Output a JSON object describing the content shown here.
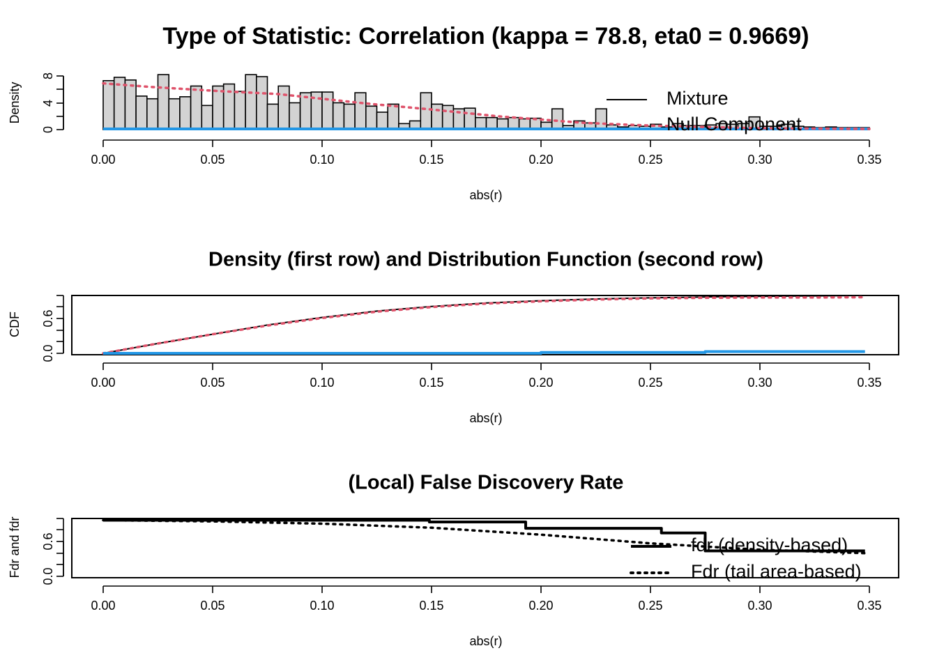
{
  "colors": {
    "mixture": "#000000",
    "null": "#2297E6",
    "density_fit": "#DF536B",
    "hist_fill": "#D3D3D3"
  },
  "chart_data": [
    {
      "type": "histogram",
      "title": "Type of Statistic: Correlation (kappa = 78.8, eta0 = 0.9669)",
      "xlabel": "abs(r)",
      "ylabel": "Density",
      "xlim": [
        0,
        0.35
      ],
      "ylim": [
        0,
        8
      ],
      "xticks": [
        "0.00",
        "0.05",
        "0.10",
        "0.15",
        "0.20",
        "0.25",
        "0.30",
        "0.35"
      ],
      "yticks": [
        "0",
        "4",
        "8"
      ],
      "bin_width": 0.005,
      "bin_heights": [
        7.3,
        7.8,
        7.4,
        5.0,
        4.6,
        8.2,
        4.6,
        4.9,
        6.5,
        3.6,
        6.5,
        6.8,
        5.7,
        8.2,
        7.9,
        3.8,
        6.5,
        4.0,
        5.5,
        5.6,
        5.6,
        4.0,
        3.8,
        5.5,
        3.5,
        2.6,
        3.8,
        0.9,
        1.3,
        5.5,
        3.8,
        3.6,
        3.1,
        3.2,
        1.8,
        1.8,
        1.6,
        1.8,
        1.6,
        1.7,
        1.1,
        3.1,
        0.6,
        1.3,
        1.0,
        3.1,
        0.7,
        0.4,
        0.6,
        0.5,
        0.8,
        0.4,
        0.9,
        0.6,
        0.6,
        0.7,
        0.9,
        0.8,
        0.9,
        1.9,
        0.5,
        0.5,
        0.8,
        0.5,
        0.4,
        0.3,
        0.4,
        0.3,
        0.3,
        0.3
      ],
      "series": [
        {
          "name": "Mixture",
          "style": "solid",
          "color": "#000000",
          "x": [
            0.0,
            0.25,
            0.35
          ],
          "y": [
            0.1,
            0.1,
            0.1
          ]
        },
        {
          "name": "Null Component",
          "style": "solid-thick",
          "color": "#2297E6",
          "x": [
            0.0,
            0.35
          ],
          "y": [
            0.1,
            0.1
          ]
        },
        {
          "name": "",
          "style": "dotted",
          "color": "#DF536B",
          "x": [
            0.0,
            0.02,
            0.05,
            0.08,
            0.1,
            0.12,
            0.15,
            0.18,
            0.2,
            0.22,
            0.25,
            0.28,
            0.3,
            0.35
          ],
          "y": [
            6.9,
            6.4,
            5.8,
            5.3,
            4.6,
            3.9,
            3.0,
            2.0,
            1.5,
            1.0,
            0.6,
            0.35,
            0.2,
            0.1
          ]
        }
      ],
      "legend": {
        "position": "top-right",
        "entries": [
          "Mixture",
          "Null Component"
        ]
      }
    },
    {
      "type": "line",
      "title": "Density (first row) and Distribution Function (second row)",
      "xlabel": "abs(r)",
      "ylabel": "CDF",
      "xlim": [
        0,
        0.35
      ],
      "ylim": [
        0,
        1
      ],
      "xticks": [
        "0.00",
        "0.05",
        "0.10",
        "0.15",
        "0.20",
        "0.25",
        "0.30",
        "0.35"
      ],
      "yticks": [
        "0.0",
        "0.6"
      ],
      "series": [
        {
          "name": "",
          "style": "solid",
          "color": "#000000",
          "x": [
            0.0,
            0.025,
            0.05,
            0.075,
            0.1,
            0.125,
            0.15,
            0.175,
            0.2,
            0.225,
            0.25,
            0.275,
            0.3,
            0.325,
            0.348
          ],
          "y": [
            0.0,
            0.17,
            0.33,
            0.49,
            0.62,
            0.73,
            0.81,
            0.87,
            0.91,
            0.94,
            0.96,
            0.975,
            0.985,
            0.993,
            1.0
          ]
        },
        {
          "name": "",
          "style": "dotted",
          "color": "#DF536B",
          "x": [
            0.0,
            0.025,
            0.05,
            0.075,
            0.1,
            0.125,
            0.15,
            0.175,
            0.2,
            0.225,
            0.25,
            0.275,
            0.3,
            0.325,
            0.348
          ],
          "y": [
            0.0,
            0.17,
            0.33,
            0.48,
            0.61,
            0.72,
            0.8,
            0.86,
            0.9,
            0.93,
            0.95,
            0.96,
            0.965,
            0.965,
            0.97
          ]
        },
        {
          "name": "",
          "style": "solid-thick",
          "color": "#2297E6",
          "x": [
            0.0,
            0.2,
            0.2,
            0.275,
            0.275,
            0.348
          ],
          "y": [
            0.0,
            0.0,
            0.015,
            0.015,
            0.03,
            0.03
          ]
        }
      ]
    },
    {
      "type": "line",
      "title": "(Local) False Discovery Rate",
      "xlabel": "abs(r)",
      "ylabel": "Fdr and fdr",
      "xlim": [
        0,
        0.35
      ],
      "ylim": [
        0,
        1
      ],
      "xticks": [
        "0.00",
        "0.05",
        "0.10",
        "0.15",
        "0.20",
        "0.25",
        "0.30",
        "0.35"
      ],
      "yticks": [
        "0.0",
        "0.6"
      ],
      "series": [
        {
          "name": "fdr (density-based)",
          "style": "solid",
          "color": "#000000",
          "x": [
            0.0,
            0.149,
            0.149,
            0.193,
            0.193,
            0.255,
            0.255,
            0.275,
            0.275,
            0.348
          ],
          "y": [
            0.97,
            0.97,
            0.94,
            0.94,
            0.83,
            0.83,
            0.75,
            0.75,
            0.44,
            0.44
          ]
        },
        {
          "name": "Fdr (tail area-based)",
          "style": "dotted",
          "color": "#000000",
          "x": [
            0.0,
            0.05,
            0.1,
            0.15,
            0.2,
            0.25,
            0.3,
            0.348
          ],
          "y": [
            0.97,
            0.95,
            0.91,
            0.84,
            0.72,
            0.57,
            0.46,
            0.4
          ]
        }
      ],
      "legend": {
        "position": "bottom-right",
        "entries": [
          "fdr (density-based)",
          "Fdr (tail area-based)"
        ]
      }
    }
  ]
}
